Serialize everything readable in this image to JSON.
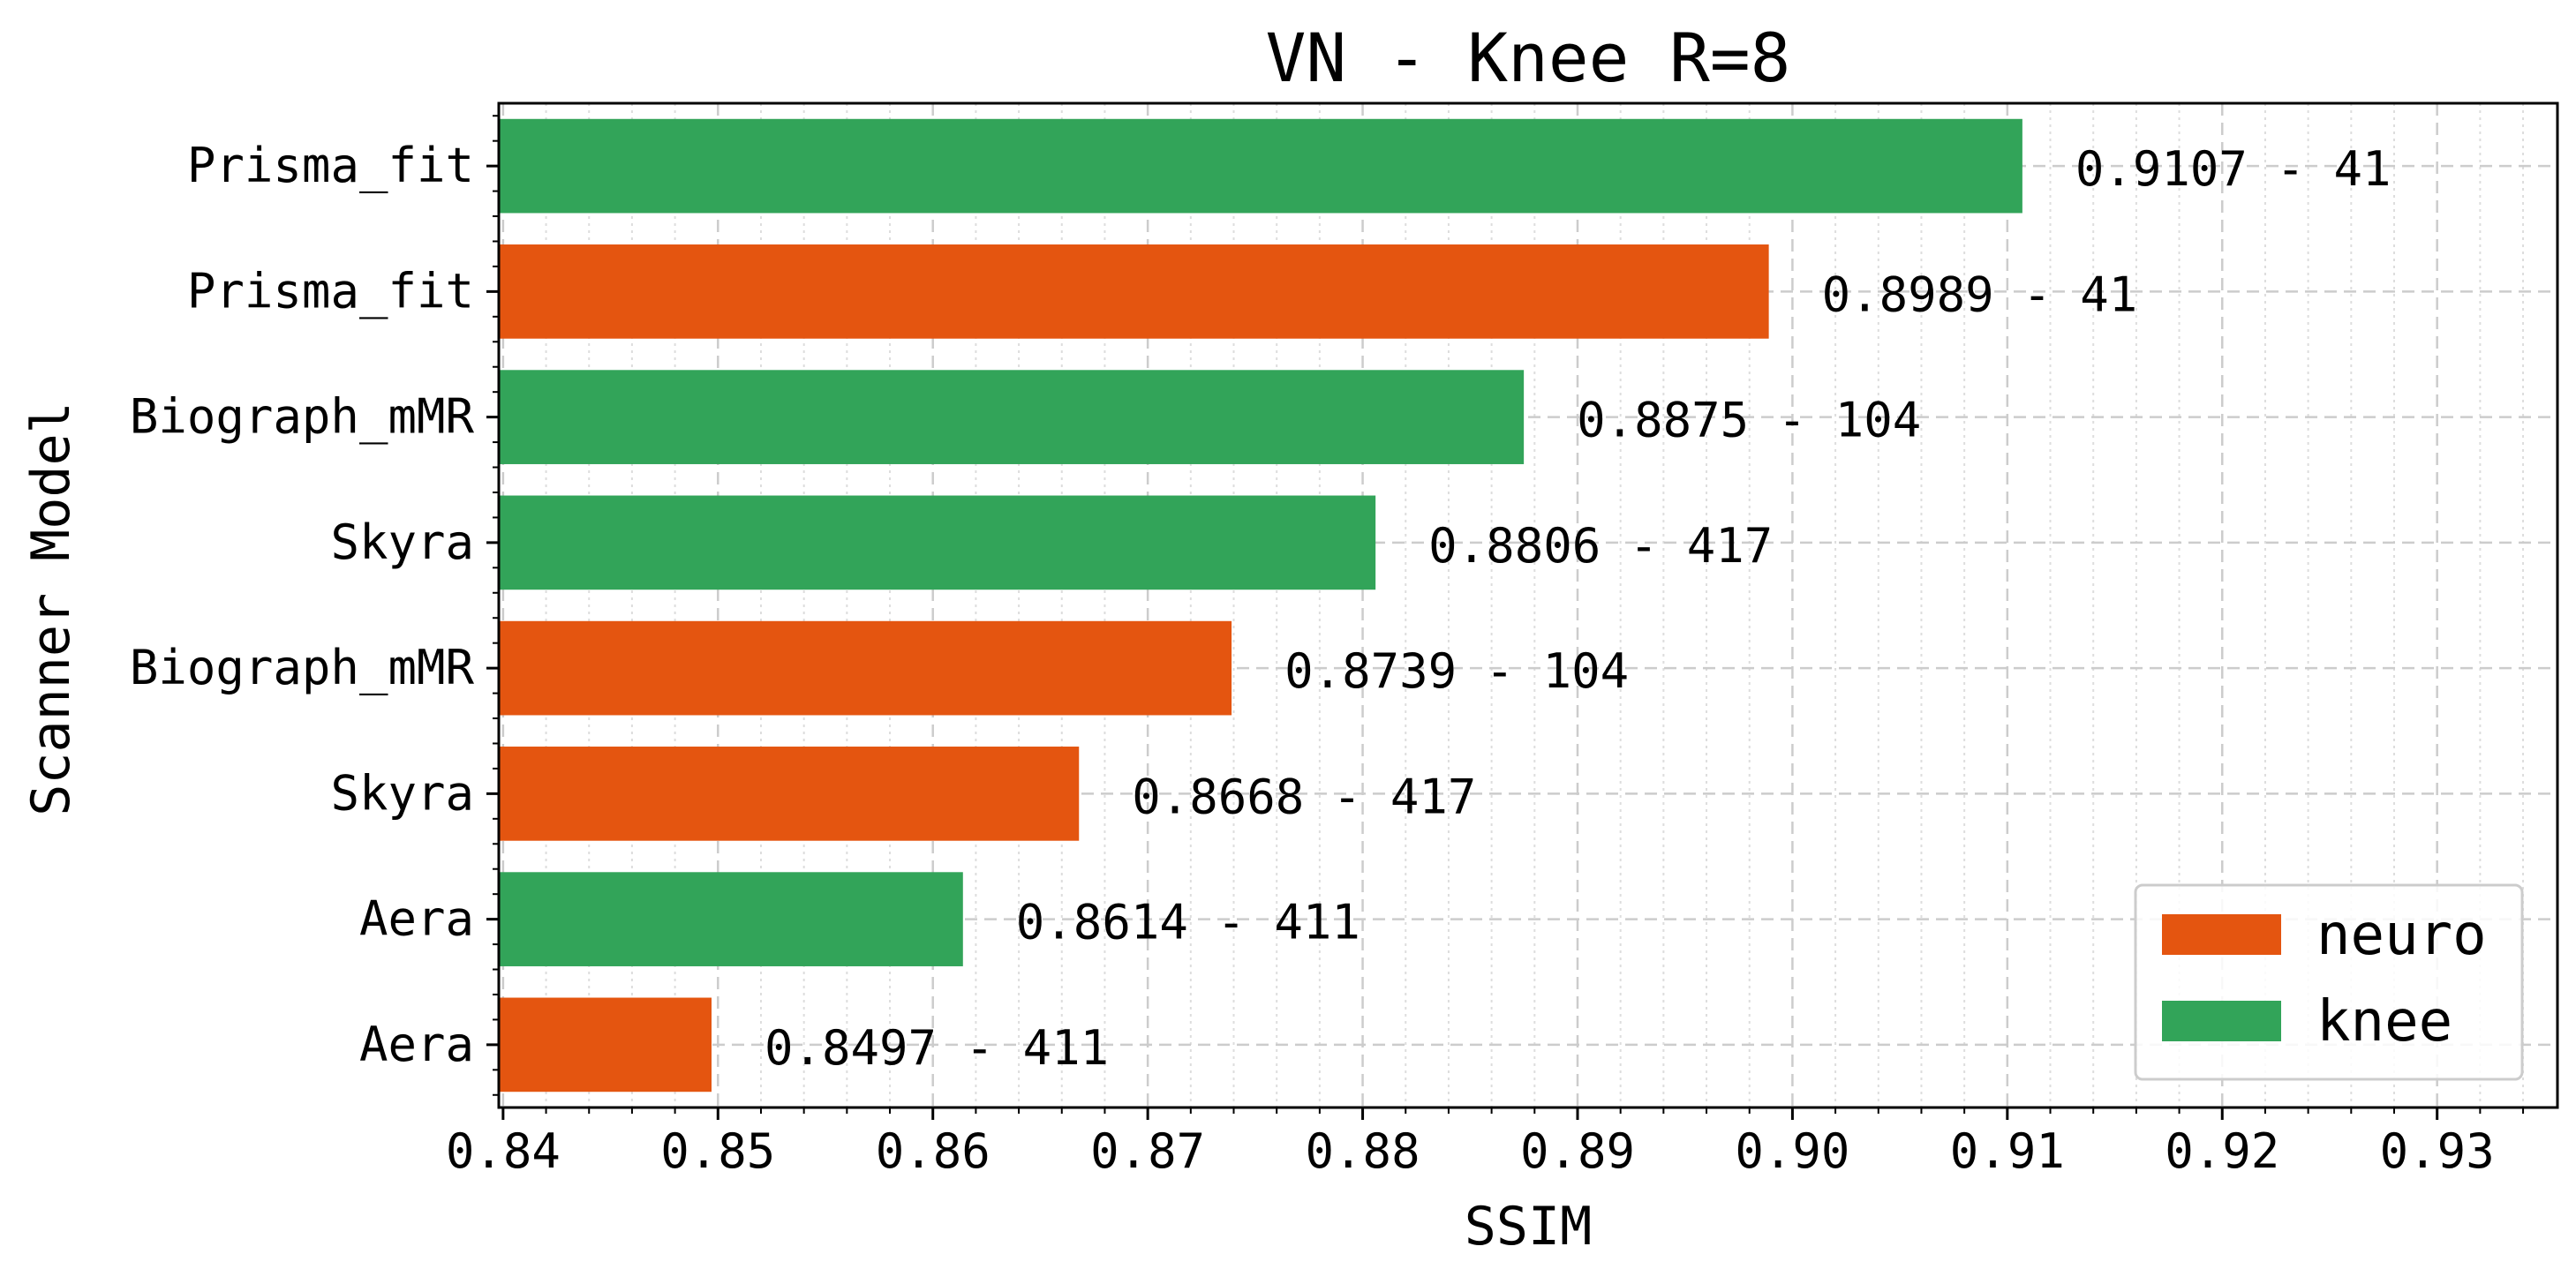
{
  "chart_data": {
    "type": "bar",
    "orientation": "horizontal",
    "title": "VN - Knee R=8",
    "xlabel": "SSIM",
    "ylabel": "Scanner Model",
    "xlim": [
      0.8398,
      0.9356
    ],
    "xticks": [
      "0.84",
      "0.85",
      "0.86",
      "0.87",
      "0.88",
      "0.89",
      "0.90",
      "0.91",
      "0.92",
      "0.93"
    ],
    "grid": true,
    "legend_position": "bottom-right",
    "colors": {
      "neuro": "#e45510",
      "knee": "#32a459"
    },
    "legend": [
      {
        "key": "neuro",
        "label": "neuro"
      },
      {
        "key": "knee",
        "label": "knee"
      }
    ],
    "bars": [
      {
        "category": "Prisma_fit",
        "series": "knee",
        "value": 0.9107,
        "label": "0.9107 - 41"
      },
      {
        "category": "Prisma_fit",
        "series": "neuro",
        "value": 0.8989,
        "label": "0.8989 - 41"
      },
      {
        "category": "Biograph_mMR",
        "series": "knee",
        "value": 0.8875,
        "label": "0.8875 - 104"
      },
      {
        "category": "Skyra",
        "series": "knee",
        "value": 0.8806,
        "label": "0.8806 - 417"
      },
      {
        "category": "Biograph_mMR",
        "series": "neuro",
        "value": 0.8739,
        "label": "0.8739 - 104"
      },
      {
        "category": "Skyra",
        "series": "neuro",
        "value": 0.8668,
        "label": "0.8668 - 417"
      },
      {
        "category": "Aera",
        "series": "knee",
        "value": 0.8614,
        "label": "0.8614 - 411"
      },
      {
        "category": "Aera",
        "series": "neuro",
        "value": 0.8497,
        "label": "0.8497 - 411"
      }
    ]
  }
}
